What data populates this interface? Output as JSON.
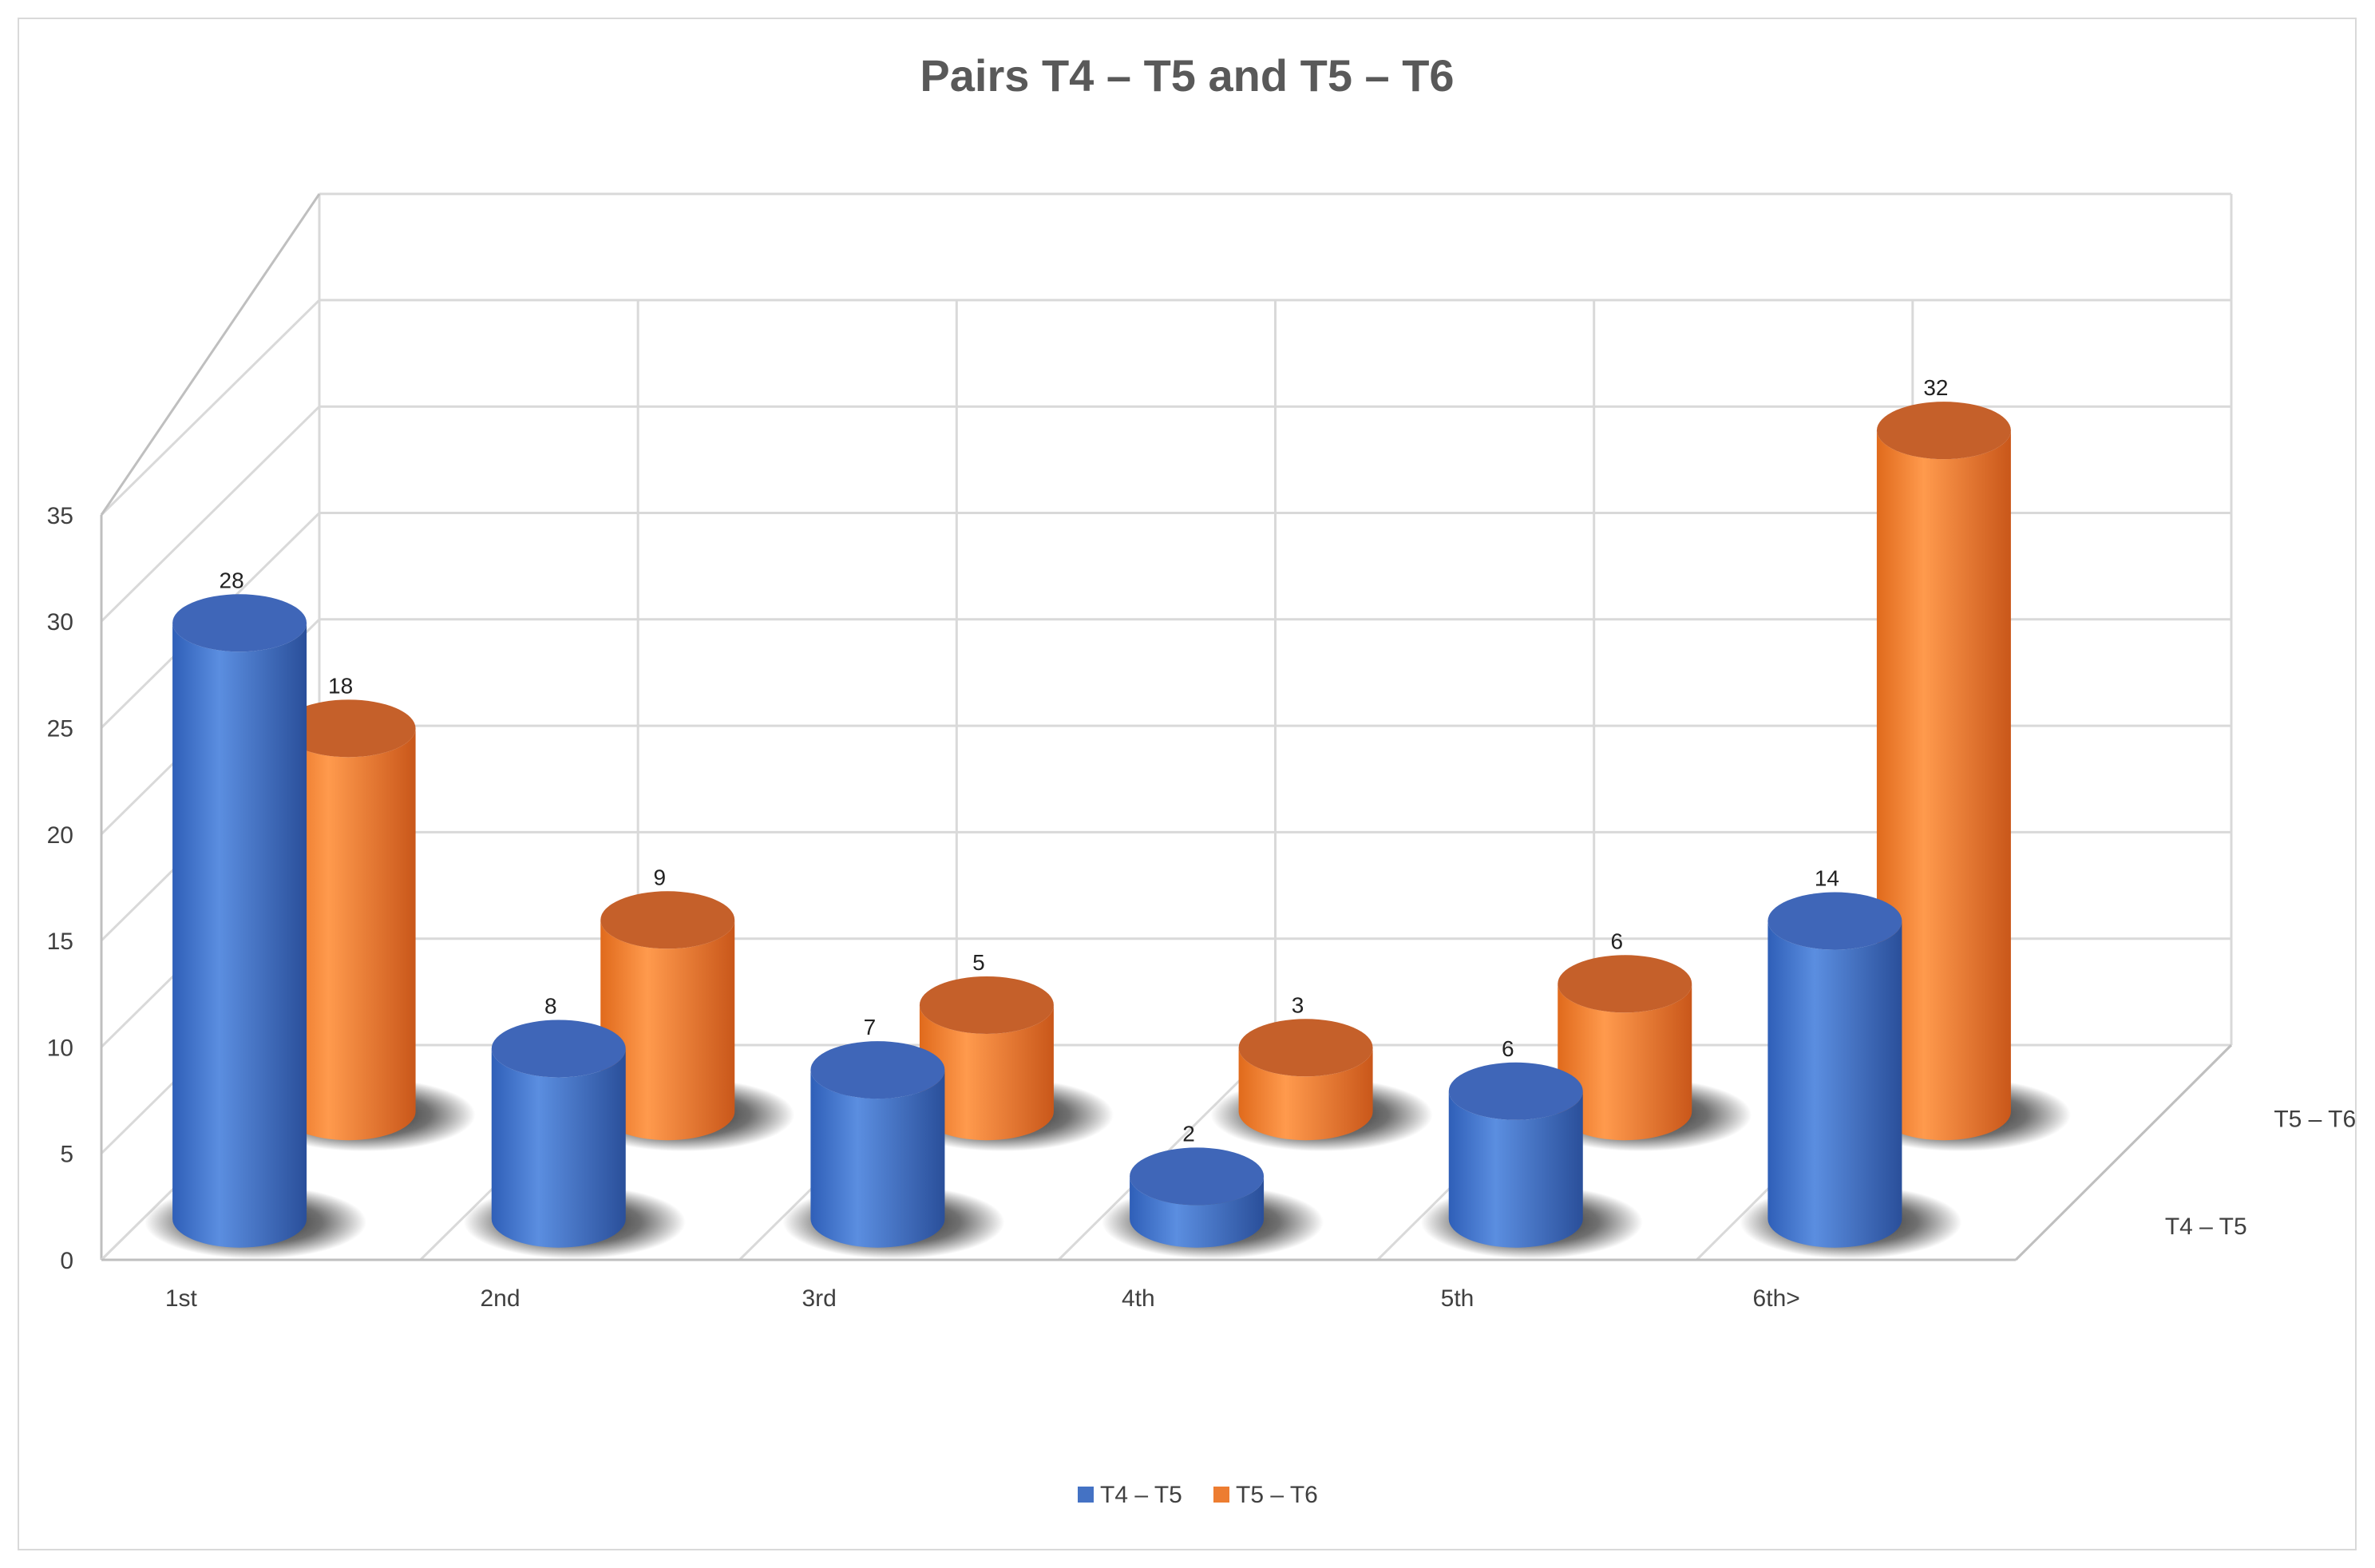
{
  "chart_data": {
    "type": "bar",
    "title": "Pairs T4 – T5 and T5 – T6",
    "categories": [
      "1st",
      "2nd",
      "3rd",
      "4th",
      "5th",
      "6th>"
    ],
    "series": [
      {
        "name": "T4 – T5",
        "values": [
          28,
          8,
          7,
          2,
          6,
          14
        ],
        "color": "#4472c4"
      },
      {
        "name": "T5 – T6",
        "values": [
          18,
          9,
          5,
          3,
          6,
          32
        ],
        "color": "#ed7d31"
      }
    ],
    "ylim": [
      0,
      35
    ],
    "yticks": [
      0,
      5,
      10,
      15,
      20,
      25,
      30,
      35
    ],
    "grid": true,
    "legend": "bottom",
    "style": "3d-cylinder"
  }
}
